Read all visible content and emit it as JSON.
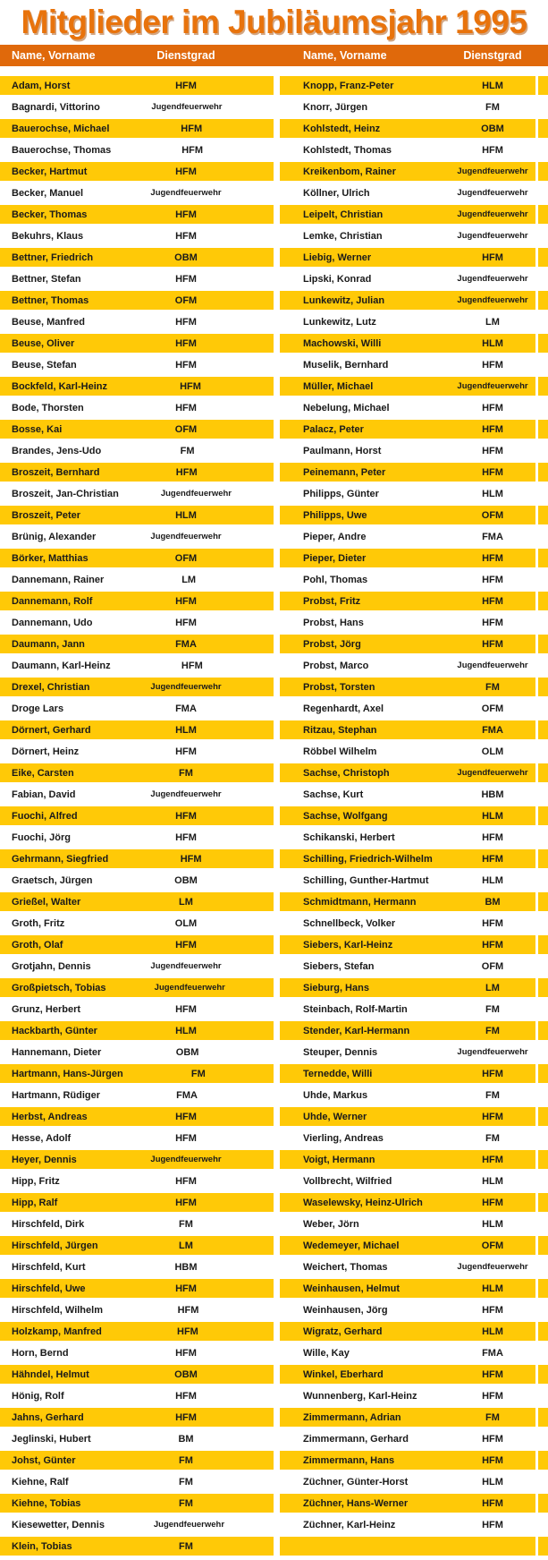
{
  "title": "Mitglieder im Jubiläumsjahr 1995",
  "colors": {
    "title_orange": "#E8730C",
    "header_bg": "#E0690B",
    "header_text": "#FFFFFF",
    "gold_row": "#FFC907",
    "white_row": "#FFFFFF",
    "body_text": "#1A1A1A"
  },
  "table": {
    "headers": [
      "Name, Vorname",
      "Dienstgrad",
      "Name, Vorname",
      "Dienstgrad"
    ],
    "junior_rank_label": "Jugendfeuerwehr",
    "rows": [
      [
        "Adam, Horst",
        "HFM",
        "Knopp, Franz-Peter",
        "HLM"
      ],
      [
        "Bagnardi, Vittorino",
        "Jugendfeuerwehr",
        "Knorr, Jürgen",
        "FM"
      ],
      [
        "Bauerochse, Michael",
        "HFM",
        "Kohlstedt, Heinz",
        "OBM"
      ],
      [
        "Bauerochse, Thomas",
        "HFM",
        "Kohlstedt, Thomas",
        "HFM"
      ],
      [
        "Becker, Hartmut",
        "HFM",
        "Kreikenbom, Rainer",
        "Jugendfeuerwehr"
      ],
      [
        "Becker, Manuel",
        "Jugendfeuerwehr",
        "Köllner, Ulrich",
        "Jugendfeuerwehr"
      ],
      [
        "Becker, Thomas",
        "HFM",
        "Leipelt, Christian",
        "Jugendfeuerwehr"
      ],
      [
        "Bekuhrs, Klaus",
        "HFM",
        "Lemke, Christian",
        "Jugendfeuerwehr"
      ],
      [
        "Bettner, Friedrich",
        "OBM",
        "Liebig, Werner",
        "HFM"
      ],
      [
        "Bettner, Stefan",
        "HFM",
        "Lipski, Konrad",
        "Jugendfeuerwehr"
      ],
      [
        "Bettner, Thomas",
        "OFM",
        "Lunkewitz, Julian",
        "Jugendfeuerwehr"
      ],
      [
        "Beuse, Manfred",
        "HFM",
        "Lunkewitz, Lutz",
        "LM"
      ],
      [
        "Beuse, Oliver",
        "HFM",
        "Machowski, Willi",
        "HLM"
      ],
      [
        "Beuse, Stefan",
        "HFM",
        "Muselik, Bernhard",
        "HFM"
      ],
      [
        "Bockfeld, Karl-Heinz",
        "HFM",
        "Müller, Michael",
        "Jugendfeuerwehr"
      ],
      [
        "Bode, Thorsten",
        "HFM",
        "Nebelung, Michael",
        "HFM"
      ],
      [
        "Bosse, Kai",
        "OFM",
        "Palacz, Peter",
        "HFM"
      ],
      [
        "Brandes, Jens-Udo",
        "FM",
        "Paulmann, Horst",
        "HFM"
      ],
      [
        "Broszeit, Bernhard",
        "HFM",
        "Peinemann, Peter",
        "HFM"
      ],
      [
        "Broszeit, Jan-Christian",
        "Jugendfeuerwehr",
        "Philipps, Günter",
        "HLM"
      ],
      [
        "Broszeit, Peter",
        "HLM",
        "Philipps, Uwe",
        "OFM"
      ],
      [
        "Brünig, Alexander",
        "Jugendfeuerwehr",
        "Pieper, Andre",
        "FMA"
      ],
      [
        "Börker, Matthias",
        "OFM",
        "Pieper, Dieter",
        "HFM"
      ],
      [
        "Dannemann, Rainer",
        "LM",
        "Pohl, Thomas",
        "HFM"
      ],
      [
        "Dannemann, Rolf",
        "HFM",
        "Probst, Fritz",
        "HFM"
      ],
      [
        "Dannemann, Udo",
        "HFM",
        "Probst, Hans",
        "HFM"
      ],
      [
        "Daumann, Jann",
        "FMA",
        "Probst, Jörg",
        "HFM"
      ],
      [
        "Daumann, Karl-Heinz",
        "HFM",
        "Probst, Marco",
        "Jugendfeuerwehr"
      ],
      [
        "Drexel, Christian",
        "Jugendfeuerwehr",
        "Probst, Torsten",
        "FM"
      ],
      [
        "Droge Lars",
        "FMA",
        "Regenhardt, Axel",
        "OFM"
      ],
      [
        "Dörnert, Gerhard",
        "HLM",
        "Ritzau, Stephan",
        "FMA"
      ],
      [
        "Dörnert, Heinz",
        "HFM",
        "Röbbel Wilhelm",
        "OLM"
      ],
      [
        "Eike, Carsten",
        "FM",
        "Sachse, Christoph",
        "Jugendfeuerwehr"
      ],
      [
        "Fabian, David",
        "Jugendfeuerwehr",
        "Sachse, Kurt",
        "HBM"
      ],
      [
        "Fuochi, Alfred",
        "HFM",
        "Sachse, Wolfgang",
        "HLM"
      ],
      [
        "Fuochi, Jörg",
        "HFM",
        "Schikanski, Herbert",
        "HFM"
      ],
      [
        "Gehrmann, Siegfried",
        "HFM",
        "Schilling, Friedrich-Wilhelm",
        "HFM"
      ],
      [
        "Graetsch, Jürgen",
        "OBM",
        "Schilling, Gunther-Hartmut",
        "HLM"
      ],
      [
        "Grießel, Walter",
        "LM",
        "Schmidtmann, Hermann",
        "BM"
      ],
      [
        "Groth, Fritz",
        "OLM",
        "Schnellbeck, Volker",
        "HFM"
      ],
      [
        "Groth, Olaf",
        "HFM",
        "Siebers, Karl-Heinz",
        "HFM"
      ],
      [
        "Grotjahn, Dennis",
        "Jugendfeuerwehr",
        "Siebers, Stefan",
        "OFM"
      ],
      [
        "Großpietsch, Tobias",
        "Jugendfeuerwehr",
        "Sieburg, Hans",
        "LM"
      ],
      [
        "Grunz, Herbert",
        "HFM",
        "Steinbach, Rolf-Martin",
        "FM"
      ],
      [
        "Hackbarth, Günter",
        "HLM",
        "Stender, Karl-Hermann",
        "FM"
      ],
      [
        "Hannemann, Dieter",
        "OBM",
        "Steuper, Dennis",
        "Jugendfeuerwehr"
      ],
      [
        "Hartmann, Hans-Jürgen",
        "FM",
        "Ternedde, Willi",
        "HFM"
      ],
      [
        "Hartmann, Rüdiger",
        "FMA",
        "Uhde, Markus",
        "FM"
      ],
      [
        "Herbst, Andreas",
        "HFM",
        "Uhde, Werner",
        "HFM"
      ],
      [
        "Hesse, Adolf",
        "HFM",
        "Vierling, Andreas",
        "FM"
      ],
      [
        "Heyer, Dennis",
        "Jugendfeuerwehr",
        "Voigt, Hermann",
        "HFM"
      ],
      [
        "Hipp, Fritz",
        "HFM",
        "Vollbrecht, Wilfried",
        "HLM"
      ],
      [
        "Hipp, Ralf",
        "HFM",
        "Waselewsky, Heinz-Ulrich",
        "HFM"
      ],
      [
        "Hirschfeld, Dirk",
        "FM",
        "Weber, Jörn",
        "HLM"
      ],
      [
        "Hirschfeld, Jürgen",
        "LM",
        "Wedemeyer, Michael",
        "OFM"
      ],
      [
        "Hirschfeld, Kurt",
        "HBM",
        "Weichert, Thomas",
        "Jugendfeuerwehr"
      ],
      [
        "Hirschfeld, Uwe",
        "HFM",
        "Weinhausen, Helmut",
        "HLM"
      ],
      [
        "Hirschfeld, Wilhelm",
        "HFM",
        "Weinhausen, Jörg",
        "HFM"
      ],
      [
        "Holzkamp, Manfred",
        "HFM",
        "Wigratz, Gerhard",
        "HLM"
      ],
      [
        "Horn, Bernd",
        "HFM",
        "Wille, Kay",
        "FMA"
      ],
      [
        "Hähndel, Helmut",
        "OBM",
        "Winkel, Eberhard",
        "HFM"
      ],
      [
        "Hönig, Rolf",
        "HFM",
        "Wunnenberg, Karl-Heinz",
        "HFM"
      ],
      [
        "Jahns, Gerhard",
        "HFM",
        "Zimmermann, Adrian",
        "FM"
      ],
      [
        "Jeglinski, Hubert",
        "BM",
        "Zimmermann, Gerhard",
        "HFM"
      ],
      [
        "Johst, Günter",
        "FM",
        "Zimmermann, Hans",
        "HFM"
      ],
      [
        "Kiehne, Ralf",
        "FM",
        "Züchner, Günter-Horst",
        "HLM"
      ],
      [
        "Kiehne, Tobias",
        "FM",
        "Züchner, Hans-Werner",
        "HFM"
      ],
      [
        "Kiesewetter, Dennis",
        "Jugendfeuerwehr",
        "Züchner, Karl-Heinz",
        "HFM"
      ],
      [
        "Klein, Tobias",
        "FM",
        "",
        ""
      ]
    ]
  }
}
